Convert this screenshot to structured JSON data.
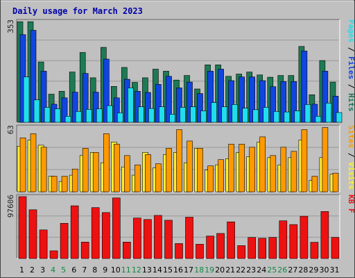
{
  "chart_data": {
    "type": "bar",
    "title": "Daily usage for March 2023",
    "days": [
      "1",
      "2",
      "3",
      "4",
      "5",
      "6",
      "7",
      "8",
      "9",
      "10",
      "11",
      "12",
      "13",
      "14",
      "15",
      "16",
      "17",
      "18",
      "19",
      "20",
      "21",
      "22",
      "23",
      "24",
      "25",
      "26",
      "27",
      "28",
      "29",
      "30",
      "31"
    ],
    "weekend_days": [
      "4",
      "5",
      "11",
      "12",
      "18",
      "19",
      "25",
      "26"
    ],
    "colors": {
      "hits": "#1e7a55",
      "files": "#1045e0",
      "pages": "#22ddee",
      "visits": "#ffee33",
      "sites": "#ff9900",
      "kbytes": "#ee1111",
      "panel_bg": "#c0c0c0",
      "page_bg": "#c0c0c0",
      "title_color": "#0000aa",
      "weekday_tick": "#000000",
      "weekend_tick": "#118844"
    },
    "panels": [
      {
        "name": "hits_files_pages",
        "ymax_label": "353",
        "ymax": 353,
        "legend": [
          {
            "text": "Hits",
            "color": "#1e7a55"
          },
          {
            "text": "Files",
            "color": "#1045e0"
          },
          {
            "text": "Pages",
            "color": "#22ddee"
          }
        ],
        "series": [
          {
            "name": "Hits",
            "color": "#1e7a55",
            "values": [
              350,
              350,
              210,
              98,
              108,
              175,
              243,
              155,
              261,
              125,
              191,
              139,
              155,
              185,
              178,
              147,
              163,
              116,
              200,
              200,
              160,
              168,
              175,
              165,
              157,
              163,
              163,
              264,
              96,
              215,
              140
            ]
          },
          {
            "name": "Files",
            "color": "#1045e0",
            "values": [
              305,
              320,
              178,
              63,
              85,
              105,
              170,
              105,
              220,
              85,
              150,
              108,
              104,
              132,
              160,
              120,
              140,
              100,
              178,
              185,
              145,
              158,
              158,
              145,
              124,
              142,
              142,
              248,
              63,
              178,
              91
            ]
          },
          {
            "name": "Pages",
            "color": "#22ddee",
            "values": [
              158,
              78,
              52,
              47,
              21,
              38,
              45,
              47,
              58,
              33,
              120,
              54,
              48,
              54,
              28,
              52,
              54,
              40,
              69,
              54,
              62,
              49,
              44,
              52,
              38,
              36,
              40,
              62,
              21,
              67,
              34
            ]
          }
        ]
      },
      {
        "name": "visits_sites",
        "ymax_label": "63",
        "ymax": 63,
        "legend": [
          {
            "text": "Visits",
            "color": "#ffee33"
          },
          {
            "text": "Sites",
            "color": "#ff9900"
          }
        ],
        "series": [
          {
            "name": "Visits",
            "color": "#ffee33",
            "values": [
              44,
              50,
              45,
              15,
              10,
              16,
              35,
              38,
              28,
              48,
              24,
              16,
              38,
              23,
              36,
              38,
              28,
              42,
              21,
              26,
              32,
              38,
              34,
              48,
              33,
              26,
              33,
              50,
              11,
              33,
              17
            ]
          },
          {
            "name": "Sites",
            "color": "#ff9900",
            "values": [
              52,
              56,
              43,
              15,
              15,
              22,
              42,
              38,
              56,
              46,
              35,
              26,
              36,
              27,
              42,
              60,
              49,
              42,
              25,
              31,
              46,
              46,
              43,
              53,
              35,
              43,
              39,
              60,
              15,
              62,
              18
            ]
          }
        ]
      },
      {
        "name": "kbytes",
        "ymax_label": "97606",
        "ymax": 97606,
        "legend": [
          {
            "text": "KB F",
            "color": "#ee1111"
          }
        ],
        "series": [
          {
            "name": "KB F",
            "color": "#ee1111",
            "values": [
              96600,
              76100,
              44700,
              12000,
              55000,
              82300,
              25700,
              79500,
              71800,
              94600,
              25700,
              63200,
              60900,
              67300,
              59800,
              23400,
              64500,
              22300,
              35100,
              39100,
              57300,
              20200,
              32900,
              31700,
              33000,
              58900,
              53000,
              66000,
              25400,
              73400,
              33000
            ]
          }
        ]
      }
    ]
  }
}
